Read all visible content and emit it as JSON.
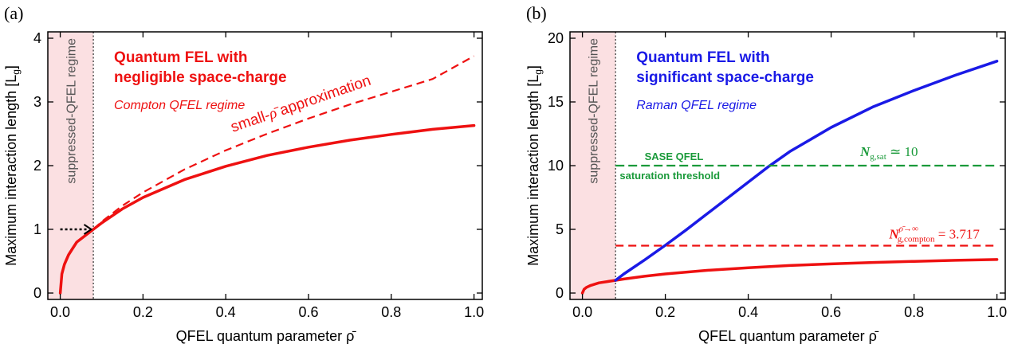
{
  "colors": {
    "red": "#ee1111",
    "blue": "#1a1ae6",
    "green": "#1a9a3a",
    "shade": "#fbe0e2"
  },
  "chart_data": [
    {
      "type": "line",
      "panel_label": "(a)",
      "xlabel": "QFEL quantum parameter ρ̄",
      "ylabel": "Maximum interaction length [L",
      "ylabel_sub": "g",
      "ylabel_close": "]",
      "xlim": [
        -0.03,
        1.02
      ],
      "ylim": [
        -0.1,
        4.1
      ],
      "xticks": [
        0.0,
        0.2,
        0.4,
        0.6,
        0.8,
        1.0
      ],
      "xtick_labels": [
        "0.0",
        "0.2",
        "0.4",
        "0.6",
        "0.8",
        "1.0"
      ],
      "yticks": [
        0,
        1,
        2,
        3,
        4
      ],
      "ytick_labels": [
        "0",
        "1",
        "2",
        "3",
        "4"
      ],
      "threshold_x": 0.08,
      "regime_label": "suppressed-QFEL regime",
      "title_line1": "Quantum FEL with",
      "title_line2": "negligible space-charge",
      "subtitle": "Compton QFEL regime",
      "curve_label_pre": "small-",
      "curve_label_sym": "ρ̄",
      "curve_label_post": " approximation",
      "series": [
        {
          "style": "solid",
          "color": "red",
          "x": [
            0.0,
            0.004,
            0.01,
            0.02,
            0.03,
            0.04,
            0.06,
            0.08,
            0.1,
            0.15,
            0.2,
            0.3,
            0.4,
            0.5,
            0.6,
            0.7,
            0.8,
            0.9,
            1.0
          ],
          "y": [
            0.0,
            0.3,
            0.45,
            0.6,
            0.7,
            0.8,
            0.9,
            1.0,
            1.1,
            1.32,
            1.5,
            1.78,
            1.99,
            2.16,
            2.29,
            2.4,
            2.49,
            2.57,
            2.63
          ]
        },
        {
          "style": "dashed",
          "color": "red",
          "x": [
            0.08,
            0.1,
            0.15,
            0.2,
            0.3,
            0.4,
            0.5,
            0.6,
            0.7,
            0.8,
            0.9,
            1.0
          ],
          "y": [
            1.0,
            1.12,
            1.37,
            1.58,
            1.94,
            2.24,
            2.5,
            2.74,
            2.96,
            3.16,
            3.36,
            3.72
          ]
        }
      ],
      "arrow": {
        "x_from": 0.0,
        "x_to": 0.075,
        "y": 1.0
      }
    },
    {
      "type": "line",
      "panel_label": "(b)",
      "xlabel": "QFEL quantum parameter ρ̄",
      "ylabel": "Maximum interaction length [L",
      "ylabel_sub": "g",
      "ylabel_close": "]",
      "xlim": [
        -0.03,
        1.02
      ],
      "ylim": [
        -0.5,
        20.5
      ],
      "xticks": [
        0.0,
        0.2,
        0.4,
        0.6,
        0.8,
        1.0
      ],
      "xtick_labels": [
        "0.0",
        "0.2",
        "0.4",
        "0.6",
        "0.8",
        "1.0"
      ],
      "yticks": [
        0,
        5,
        10,
        15,
        20
      ],
      "ytick_labels": [
        "0",
        "5",
        "10",
        "15",
        "20"
      ],
      "threshold_x": 0.08,
      "regime_label": "suppressed-QFEL regime",
      "title_line1": "Quantum FEL with",
      "title_line2": "significant space-charge",
      "subtitle": "Raman QFEL regime",
      "sat_label_line1": "SASE QFEL",
      "sat_label_line2": "saturation threshold",
      "sat_value": 10,
      "sat_eq_sym": "N",
      "sat_eq_sub": "g,sat",
      "sat_eq_rhs": " ≃ 10",
      "compton_value": 3.717,
      "compton_eq_sym": "N",
      "compton_eq_sup": "ρ̄→∞",
      "compton_eq_sub": "g,compton",
      "compton_eq_rhs": " = 3.717",
      "series": [
        {
          "style": "solid",
          "color": "red",
          "x": [
            0.0,
            0.004,
            0.01,
            0.02,
            0.03,
            0.04,
            0.06,
            0.08,
            0.1,
            0.15,
            0.2,
            0.3,
            0.4,
            0.5,
            0.6,
            0.7,
            0.8,
            0.9,
            1.0
          ],
          "y": [
            0.0,
            0.3,
            0.45,
            0.6,
            0.7,
            0.8,
            0.9,
            1.0,
            1.1,
            1.32,
            1.5,
            1.78,
            1.99,
            2.16,
            2.29,
            2.4,
            2.49,
            2.57,
            2.63
          ]
        },
        {
          "style": "solid",
          "color": "blue",
          "x": [
            0.08,
            0.1,
            0.15,
            0.2,
            0.25,
            0.3,
            0.35,
            0.4,
            0.45,
            0.5,
            0.6,
            0.7,
            0.8,
            0.9,
            1.0
          ],
          "y": [
            1.0,
            1.5,
            2.6,
            3.75,
            4.95,
            6.2,
            7.45,
            8.7,
            9.95,
            11.1,
            13.0,
            14.6,
            15.9,
            17.1,
            18.2
          ]
        },
        {
          "style": "dashed",
          "color": "green",
          "x": [
            0.08,
            1.0
          ],
          "y": [
            10,
            10
          ]
        },
        {
          "style": "dashed",
          "color": "red",
          "x": [
            0.08,
            1.0
          ],
          "y": [
            3.717,
            3.717
          ]
        }
      ]
    }
  ]
}
